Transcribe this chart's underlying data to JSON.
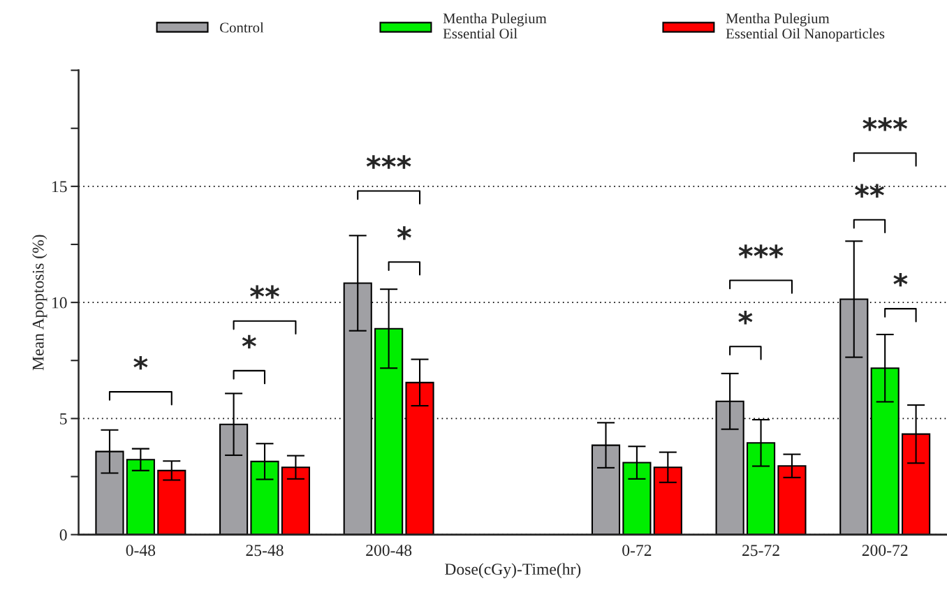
{
  "chart_data": {
    "type": "bar",
    "xlabel": "Dose(cGy)-Time(hr)",
    "ylabel": "Mean Apoptosis (%)",
    "categories": [
      "0-48",
      "25-48",
      "200-48",
      null,
      "0-72",
      "25-72",
      "200-72"
    ],
    "series": [
      {
        "name": "Control",
        "color": "#a0a0a4",
        "values": [
          3.58,
          4.75,
          10.83,
          null,
          3.85,
          5.74,
          10.14
        ],
        "errors": [
          0.93,
          1.33,
          2.05,
          null,
          0.97,
          1.2,
          2.5
        ]
      },
      {
        "name": "Mentha Pulegium\nEssential Oil",
        "color": "#00ee00",
        "values": [
          3.23,
          3.15,
          8.87,
          null,
          3.1,
          3.95,
          7.17
        ],
        "errors": [
          0.47,
          0.77,
          1.7,
          null,
          0.7,
          1.0,
          1.45
        ]
      },
      {
        "name": "Mentha Pulegium\nEssential Oil Nanoparticles",
        "color": "#ff0000",
        "values": [
          2.76,
          2.9,
          6.55,
          null,
          2.9,
          2.96,
          4.33
        ],
        "errors": [
          0.41,
          0.5,
          1.0,
          null,
          0.65,
          0.5,
          1.25
        ]
      }
    ],
    "ylim": [
      0,
      20
    ],
    "yticks": [
      0,
      {
        "value": 2.5,
        "label": null
      },
      5,
      {
        "value": 7.5,
        "label": null
      },
      10,
      {
        "value": 12.5,
        "label": null
      },
      15,
      {
        "value": 17.5,
        "label": null
      },
      {
        "value": 20,
        "label": null
      }
    ],
    "grid": "y",
    "legend": "top",
    "annotations": [
      "*",
      "*",
      "**",
      "***",
      "*",
      "*",
      "***",
      "**",
      "***",
      "*"
    ]
  }
}
